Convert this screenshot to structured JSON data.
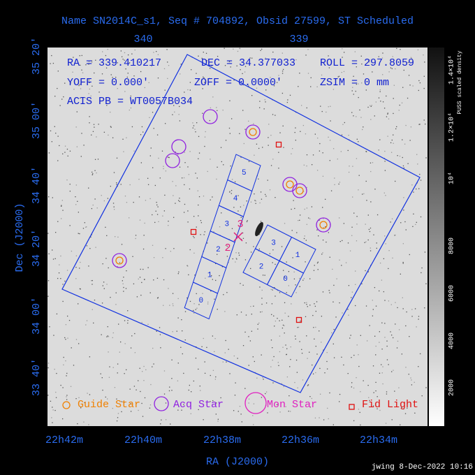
{
  "header": {
    "title": "Name SN2014C_s1, Seq # 704892, Obsid 27599, ST Scheduled"
  },
  "axes": {
    "top_labels": [
      "340",
      "339"
    ],
    "left_labels": [
      "35 20'",
      "35 00'",
      "34 40'",
      "34 20'",
      "34 00'",
      "33 40'"
    ],
    "bottom_labels": [
      "22h42m",
      "22h40m",
      "22h38m",
      "22h36m",
      "22h34m"
    ],
    "x_title": "RA (J2000)",
    "y_title": "Dec (J2000)"
  },
  "colorbar": {
    "labels": [
      "2000",
      "4000",
      "6000",
      "8000",
      "10⁴",
      "1.2×10⁴",
      "1.4×10⁴"
    ],
    "title": "PUSS scaled density"
  },
  "info": [
    "RA = 339.410217",
    "DEC = 34.377033",
    "ROLL = 297.8059",
    "YOFF =   0.000'",
    "ZOFF =  0.0000'",
    "ZSIM = 0 mm",
    "ACIS PB = WT0057B034"
  ],
  "chips": {
    "left": [
      "0",
      "1",
      "2",
      "3",
      "4",
      "5"
    ],
    "right": [
      "3",
      "1",
      "2",
      "0"
    ],
    "marks": [
      "3",
      "2"
    ]
  },
  "legend": [
    "Guide Star",
    "Acq Star",
    "Mon Star",
    "Fid Light"
  ],
  "footer": "jwing  8-Dec-2022 10:16"
}
